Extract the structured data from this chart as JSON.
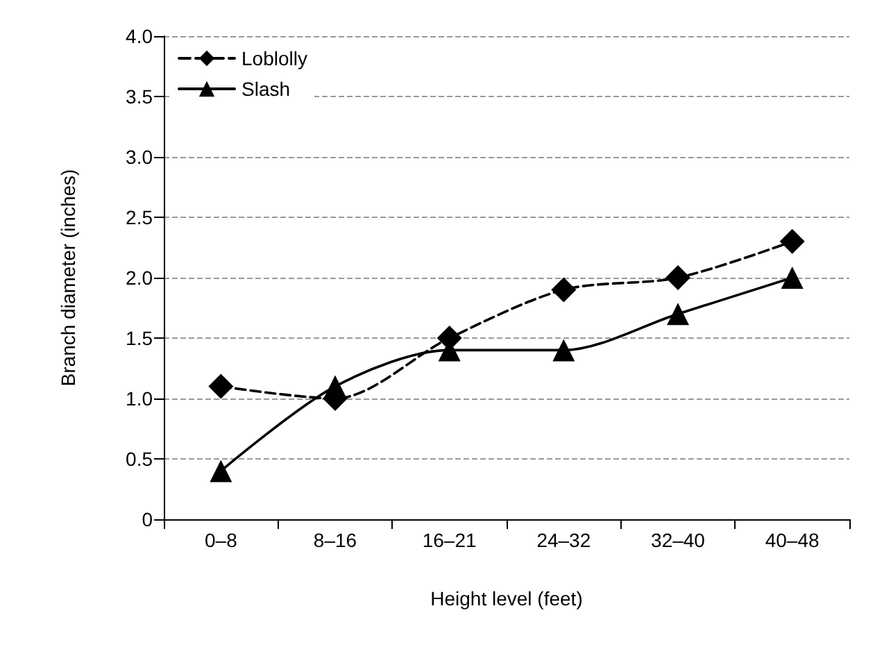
{
  "chart_data": {
    "type": "line",
    "xlabel": "Height level (feet)",
    "ylabel": "Branch diameter (inches)",
    "categories": [
      "0–8",
      "8–16",
      "16–21",
      "24–32",
      "32–40",
      "40–48"
    ],
    "series": [
      {
        "name": "Loblolly",
        "color": "#000000",
        "marker": "diamond",
        "line_style": "dashed",
        "values": [
          1.1,
          1.0,
          1.5,
          1.9,
          2.0,
          2.3
        ]
      },
      {
        "name": "Slash",
        "color": "#000000",
        "marker": "triangle",
        "line_style": "solid",
        "values": [
          0.4,
          1.1,
          1.4,
          1.4,
          1.7,
          2.0
        ]
      }
    ],
    "ylim": [
      0,
      4
    ],
    "yticks": [
      0,
      {
        "value": 0.5,
        "label": "0.5"
      },
      {
        "value": 1,
        "label": "1.0"
      },
      {
        "value": 1.5,
        "label": "1.5"
      },
      {
        "value": 2,
        "label": "2.0"
      },
      {
        "value": 2.5,
        "label": "2.5"
      },
      {
        "value": 3,
        "label": "3.0"
      },
      {
        "value": 3.5,
        "label": "3.5"
      },
      {
        "value": 4,
        "label": "4.0"
      }
    ],
    "grid": "y",
    "legend": "top left"
  }
}
